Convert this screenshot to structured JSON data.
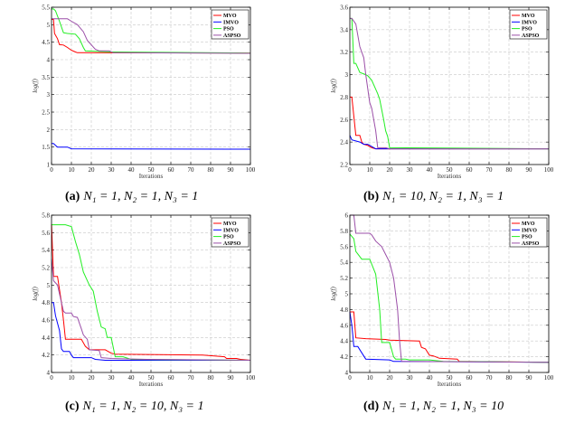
{
  "colors": {
    "MVO": "#ff0000",
    "IMVO": "#0000ff",
    "PSO": "#22ee22",
    "ASPSO": "#9b4fa8"
  },
  "chart_data": [
    {
      "type": "line",
      "caption_label": "(a)",
      "caption": "N₁ = 1, N₂ = 1, N₃ = 1",
      "xlabel": "Iterations",
      "ylabel": "log(f)",
      "xlim": [
        0,
        100
      ],
      "ylim": [
        1,
        5.5
      ],
      "xticks": [
        0,
        10,
        20,
        30,
        40,
        50,
        60,
        70,
        80,
        90,
        100
      ],
      "yticks": [
        1,
        1.5,
        2,
        2.5,
        3,
        3.5,
        4,
        4.5,
        5,
        5.5
      ],
      "grid": true,
      "legend": "top-right",
      "series": [
        {
          "name": "MVO",
          "points": [
            [
              0,
              5.15
            ],
            [
              1,
              5.15
            ],
            [
              1.5,
              4.75
            ],
            [
              3,
              4.6
            ],
            [
              4,
              4.43
            ],
            [
              6,
              4.42
            ],
            [
              8,
              4.35
            ],
            [
              10,
              4.27
            ],
            [
              12,
              4.22
            ],
            [
              13,
              4.2
            ],
            [
              100,
              4.19
            ]
          ]
        },
        {
          "name": "IMVO",
          "points": [
            [
              0,
              1.6
            ],
            [
              1,
              1.6
            ],
            [
              3,
              1.5
            ],
            [
              8,
              1.5
            ],
            [
              10,
              1.45
            ],
            [
              100,
              1.44
            ]
          ]
        },
        {
          "name": "PSO",
          "points": [
            [
              0,
              5.45
            ],
            [
              1,
              5.45
            ],
            [
              2,
              5.4
            ],
            [
              4,
              5.1
            ],
            [
              6,
              4.77
            ],
            [
              8,
              4.75
            ],
            [
              12,
              4.73
            ],
            [
              14,
              4.6
            ],
            [
              16,
              4.35
            ],
            [
              17,
              4.25
            ],
            [
              30,
              4.22
            ],
            [
              100,
              4.19
            ]
          ]
        },
        {
          "name": "ASPSO",
          "points": [
            [
              0,
              5.17
            ],
            [
              8,
              5.17
            ],
            [
              10,
              5.1
            ],
            [
              13,
              5.0
            ],
            [
              16,
              4.8
            ],
            [
              18,
              4.55
            ],
            [
              22,
              4.3
            ],
            [
              24,
              4.25
            ],
            [
              29,
              4.25
            ],
            [
              31,
              4.2
            ],
            [
              100,
              4.18
            ]
          ]
        }
      ]
    },
    {
      "type": "line",
      "caption_label": "(b)",
      "caption": "N₁ = 10, N₂ = 1, N₃ = 1",
      "xlabel": "Iterations",
      "ylabel": "log(f)",
      "xlim": [
        0,
        100
      ],
      "ylim": [
        2.2,
        3.6
      ],
      "xticks": [
        0,
        10,
        20,
        30,
        40,
        50,
        60,
        70,
        80,
        90,
        100
      ],
      "yticks": [
        2.2,
        2.4,
        2.6,
        2.8,
        3,
        3.2,
        3.4,
        3.6
      ],
      "grid": true,
      "legend": "top-right",
      "series": [
        {
          "name": "MVO",
          "points": [
            [
              0,
              2.8
            ],
            [
              1,
              2.8
            ],
            [
              3,
              2.46
            ],
            [
              5,
              2.46
            ],
            [
              6,
              2.4
            ],
            [
              7,
              2.38
            ],
            [
              9,
              2.37
            ],
            [
              11,
              2.35
            ],
            [
              13,
              2.34
            ],
            [
              100,
              2.34
            ]
          ]
        },
        {
          "name": "IMVO",
          "points": [
            [
              0,
              2.46
            ],
            [
              1,
              2.42
            ],
            [
              5,
              2.4
            ],
            [
              7,
              2.38
            ],
            [
              9,
              2.38
            ],
            [
              13,
              2.34
            ],
            [
              100,
              2.34
            ]
          ]
        },
        {
          "name": "PSO",
          "points": [
            [
              0,
              3.5
            ],
            [
              1,
              3.5
            ],
            [
              2,
              3.1
            ],
            [
              3,
              3.1
            ],
            [
              5,
              3.02
            ],
            [
              8,
              3.0
            ],
            [
              9,
              2.99
            ],
            [
              11,
              2.95
            ],
            [
              13,
              2.87
            ],
            [
              14,
              2.83
            ],
            [
              15,
              2.78
            ],
            [
              17,
              2.6
            ],
            [
              18,
              2.5
            ],
            [
              19,
              2.45
            ],
            [
              20,
              2.35
            ],
            [
              100,
              2.34
            ]
          ]
        },
        {
          "name": "ASPSO",
          "points": [
            [
              0,
              3.5
            ],
            [
              1,
              3.5
            ],
            [
              3,
              3.45
            ],
            [
              5,
              3.25
            ],
            [
              7,
              3.15
            ],
            [
              8,
              3.0
            ],
            [
              10,
              2.75
            ],
            [
              11,
              2.7
            ],
            [
              13,
              2.5
            ],
            [
              14,
              2.35
            ],
            [
              18,
              2.35
            ],
            [
              20,
              2.34
            ],
            [
              100,
              2.34
            ]
          ]
        }
      ]
    },
    {
      "type": "line",
      "caption_label": "(c)",
      "caption": "N₁ = 1, N₂ = 10, N₃ = 1",
      "xlabel": "Iterations",
      "ylabel": "log(f)",
      "xlim": [
        0,
        100
      ],
      "ylim": [
        4,
        5.8
      ],
      "xticks": [
        0,
        10,
        20,
        30,
        40,
        50,
        60,
        70,
        80,
        90,
        100
      ],
      "yticks": [
        4,
        4.2,
        4.4,
        4.6,
        4.8,
        5,
        5.2,
        5.4,
        5.6,
        5.8
      ],
      "grid": true,
      "legend": "top-right",
      "series": [
        {
          "name": "MVO",
          "points": [
            [
              0,
              5.7
            ],
            [
              1,
              5.1
            ],
            [
              3,
              5.1
            ],
            [
              5,
              4.8
            ],
            [
              6,
              4.6
            ],
            [
              7,
              4.38
            ],
            [
              15,
              4.38
            ],
            [
              17,
              4.3
            ],
            [
              19,
              4.26
            ],
            [
              27,
              4.26
            ],
            [
              30,
              4.22
            ],
            [
              32,
              4.21
            ],
            [
              76,
              4.2
            ],
            [
              87,
              4.18
            ],
            [
              88,
              4.16
            ],
            [
              93,
              4.16
            ],
            [
              95,
              4.15
            ],
            [
              100,
              4.14
            ]
          ]
        },
        {
          "name": "IMVO",
          "points": [
            [
              0,
              4.8
            ],
            [
              1,
              4.8
            ],
            [
              2,
              4.65
            ],
            [
              4,
              4.48
            ],
            [
              5,
              4.27
            ],
            [
              6,
              4.24
            ],
            [
              9,
              4.24
            ],
            [
              10,
              4.2
            ],
            [
              11,
              4.17
            ],
            [
              20,
              4.17
            ],
            [
              22,
              4.15
            ],
            [
              27,
              4.14
            ],
            [
              100,
              4.14
            ]
          ]
        },
        {
          "name": "PSO",
          "points": [
            [
              0,
              5.69
            ],
            [
              7,
              5.69
            ],
            [
              10,
              5.67
            ],
            [
              12,
              5.5
            ],
            [
              14,
              5.35
            ],
            [
              16,
              5.15
            ],
            [
              19,
              5.0
            ],
            [
              21,
              4.93
            ],
            [
              23,
              4.7
            ],
            [
              25,
              4.52
            ],
            [
              27,
              4.5
            ],
            [
              28,
              4.4
            ],
            [
              30,
              4.4
            ],
            [
              32,
              4.18
            ],
            [
              36,
              4.18
            ],
            [
              40,
              4.15
            ],
            [
              100,
              4.14
            ]
          ]
        },
        {
          "name": "ASPSO",
          "points": [
            [
              0,
              5.3
            ],
            [
              1,
              5.05
            ],
            [
              3,
              5.0
            ],
            [
              5,
              4.8
            ],
            [
              6,
              4.7
            ],
            [
              7,
              4.68
            ],
            [
              10,
              4.68
            ],
            [
              11,
              4.64
            ],
            [
              13,
              4.63
            ],
            [
              15,
              4.5
            ],
            [
              16,
              4.43
            ],
            [
              18,
              4.38
            ],
            [
              19,
              4.26
            ],
            [
              24,
              4.25
            ],
            [
              25,
              4.17
            ],
            [
              30,
              4.16
            ],
            [
              48,
              4.15
            ],
            [
              100,
              4.14
            ]
          ]
        }
      ]
    },
    {
      "type": "line",
      "caption_label": "(d)",
      "caption": "N₁ = 1, N₂ = 1, N₃ = 10",
      "xlabel": "Iterations",
      "ylabel": "log(f)",
      "xlim": [
        0,
        100
      ],
      "ylim": [
        4,
        6
      ],
      "xticks": [
        0,
        10,
        20,
        30,
        40,
        50,
        60,
        70,
        80,
        90,
        100
      ],
      "yticks": [
        4,
        4.2,
        4.4,
        4.6,
        4.8,
        5,
        5.2,
        5.4,
        5.6,
        5.8,
        6
      ],
      "grid": true,
      "legend": "top-right",
      "series": [
        {
          "name": "MVO",
          "points": [
            [
              0,
              4.77
            ],
            [
              2,
              4.77
            ],
            [
              3,
              4.44
            ],
            [
              8,
              4.43
            ],
            [
              18,
              4.42
            ],
            [
              20,
              4.41
            ],
            [
              35,
              4.4
            ],
            [
              36,
              4.32
            ],
            [
              38,
              4.3
            ],
            [
              40,
              4.22
            ],
            [
              42,
              4.21
            ],
            [
              45,
              4.18
            ],
            [
              54,
              4.17
            ],
            [
              55,
              4.14
            ],
            [
              100,
              4.13
            ]
          ]
        },
        {
          "name": "IMVO",
          "points": [
            [
              0,
              4.77
            ],
            [
              1,
              4.6
            ],
            [
              2,
              4.33
            ],
            [
              4,
              4.33
            ],
            [
              6,
              4.25
            ],
            [
              8,
              4.17
            ],
            [
              20,
              4.16
            ],
            [
              22,
              4.14
            ],
            [
              100,
              4.13
            ]
          ]
        },
        {
          "name": "PSO",
          "points": [
            [
              0,
              5.76
            ],
            [
              2,
              5.7
            ],
            [
              3,
              5.54
            ],
            [
              6,
              5.44
            ],
            [
              10,
              5.44
            ],
            [
              13,
              5.25
            ],
            [
              15,
              4.8
            ],
            [
              16,
              4.38
            ],
            [
              20,
              4.38
            ],
            [
              22,
              4.2
            ],
            [
              23,
              4.17
            ],
            [
              28,
              4.17
            ],
            [
              30,
              4.16
            ],
            [
              40,
              4.16
            ],
            [
              47,
              4.14
            ],
            [
              100,
              4.13
            ]
          ]
        },
        {
          "name": "ASPSO",
          "points": [
            [
              0,
              6.0
            ],
            [
              2,
              6.0
            ],
            [
              3,
              5.77
            ],
            [
              10,
              5.77
            ],
            [
              11,
              5.75
            ],
            [
              13,
              5.67
            ],
            [
              16,
              5.6
            ],
            [
              18,
              5.5
            ],
            [
              20,
              5.4
            ],
            [
              22,
              5.2
            ],
            [
              24,
              4.8
            ],
            [
              25,
              4.4
            ],
            [
              26,
              4.14
            ],
            [
              100,
              4.13
            ]
          ]
        }
      ]
    }
  ]
}
